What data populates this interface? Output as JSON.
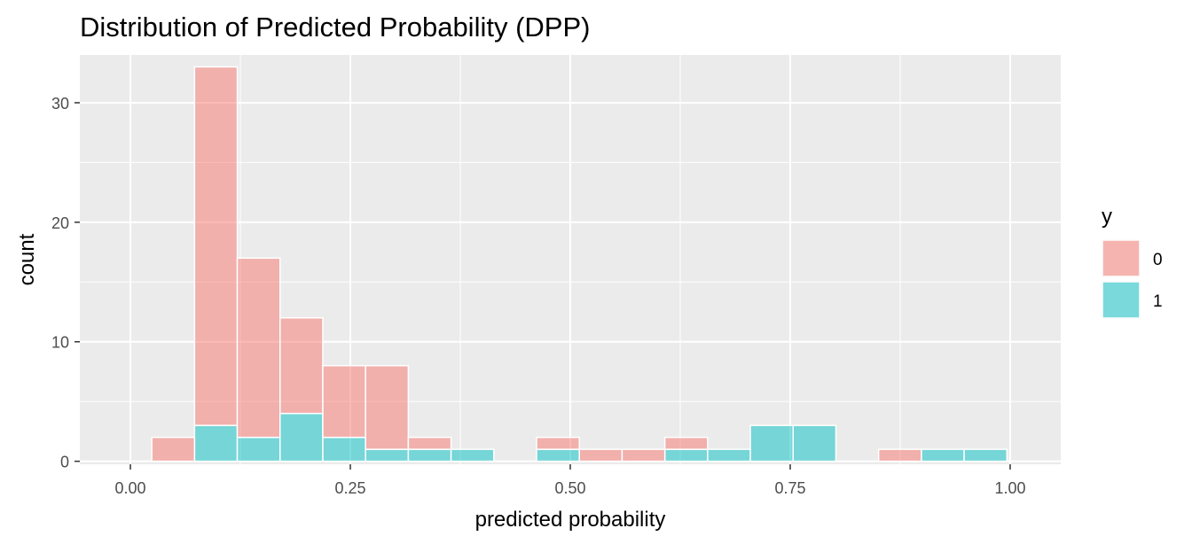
{
  "chart_data": {
    "type": "bar",
    "subtype": "stacked-histogram",
    "title": "Distribution of Predicted Probability (DPP)",
    "xlabel": "predicted probability",
    "ylabel": "count",
    "xlim": [
      -0.0575,
      1.0575
    ],
    "ylim": [
      -0.25,
      34
    ],
    "x_ticks": [
      0.0,
      0.25,
      0.5,
      0.75,
      1.0
    ],
    "x_tick_labels": [
      "0.00",
      "0.25",
      "0.50",
      "0.75",
      "1.00"
    ],
    "y_ticks": [
      0,
      10,
      20,
      30
    ],
    "y_tick_labels": [
      "0",
      "10",
      "20",
      "30"
    ],
    "bin_width": 0.0486,
    "bin_centers": [
      0.0486,
      0.0972,
      0.1458,
      0.1944,
      0.243,
      0.2916,
      0.3402,
      0.3888,
      0.4374,
      0.486,
      0.5346,
      0.5832,
      0.6318,
      0.6804,
      0.729,
      0.7776,
      0.8262,
      0.8748,
      0.9234,
      0.972
    ],
    "series": [
      {
        "name": "1",
        "color": "#00BFC4",
        "values": [
          0,
          3,
          2,
          4,
          2,
          1,
          1,
          1,
          0,
          1,
          0,
          0,
          1,
          1,
          3,
          3,
          0,
          0,
          1,
          1
        ]
      },
      {
        "name": "0",
        "color": "#F8766D",
        "values": [
          2,
          30,
          15,
          8,
          6,
          7,
          1,
          0,
          0,
          1,
          1,
          1,
          1,
          0,
          0,
          0,
          0,
          1,
          0,
          0
        ]
      }
    ],
    "legend": {
      "title": "y",
      "position": "right",
      "entries": [
        {
          "label": "0",
          "color": "#F8766D"
        },
        {
          "label": "1",
          "color": "#00BFC4"
        }
      ]
    },
    "grid": true
  }
}
